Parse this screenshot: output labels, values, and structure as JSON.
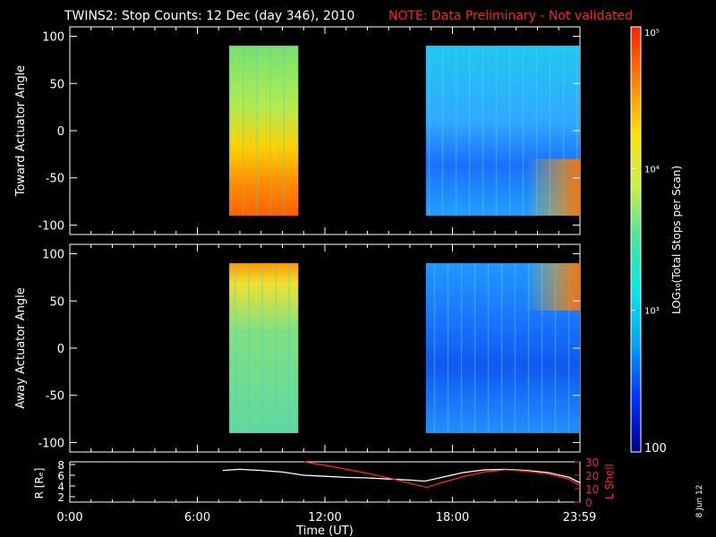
{
  "title": "TWINS2: Stop Counts: 12 Dec (day 346), 2010",
  "note": "NOTE: Data Preliminary - Not validated",
  "stamp": "8 Jun 12",
  "colorbar": {
    "label": "LOG₁₀(Total Stops per Scan)",
    "ticks": [
      {
        "value": 100000,
        "label": "10⁵"
      },
      {
        "value": 10000,
        "label": "10⁴"
      },
      {
        "value": 1000,
        "label": "10³"
      },
      {
        "value": 100,
        "label": "100"
      }
    ],
    "range": [
      100,
      100000
    ],
    "scale": "log",
    "colors": [
      "#00008c",
      "#0030ff",
      "#00a0ff",
      "#00e8e8",
      "#40e8a0",
      "#c8f040",
      "#ffe000",
      "#ff8000",
      "#ff2000"
    ]
  },
  "chart_data": [
    {
      "type": "heatmap",
      "ylabel": "Toward Actuator Angle",
      "ylim": [
        -110,
        110
      ],
      "yticks": [
        "100",
        "50",
        "0",
        "-50",
        "-100"
      ],
      "xlim_hours": [
        0,
        24
      ],
      "blocks": [
        {
          "start": "07:30",
          "end": "10:45",
          "angle_range": [
            -90,
            90
          ],
          "dominant_log_counts": 3.9
        },
        {
          "start": "16:45",
          "end": "24:00",
          "angle_range": [
            -90,
            90
          ],
          "dominant_log_counts": 3.0
        }
      ]
    },
    {
      "type": "heatmap",
      "ylabel": "Away Actuator Angle",
      "ylim": [
        -110,
        110
      ],
      "yticks": [
        "100",
        "50",
        "0",
        "-50",
        "-100"
      ],
      "xlim_hours": [
        0,
        24
      ],
      "blocks": [
        {
          "start": "07:30",
          "end": "10:45",
          "angle_range": [
            -90,
            90
          ],
          "dominant_log_counts": 3.8
        },
        {
          "start": "16:45",
          "end": "24:00",
          "angle_range": [
            -90,
            90
          ],
          "dominant_log_counts": 2.8
        }
      ]
    },
    {
      "type": "line",
      "xlabel": "Time (UT)",
      "xticks": [
        "0:00",
        "6:00",
        "12:00",
        "18:00",
        "23:59"
      ],
      "xtick_hours": [
        0,
        6,
        12,
        18,
        23.98
      ],
      "ylabel_left": "R [Rₑ]",
      "ylim_left": [
        1,
        8.5
      ],
      "yticks_left": [
        "8",
        "6",
        "4",
        "2"
      ],
      "ylabel_right": "L Shell",
      "ylim_right": [
        0,
        30
      ],
      "yticks_right": [
        "30",
        "20",
        "10",
        "0"
      ],
      "series": [
        {
          "name": "R [Rₑ]",
          "color": "#ffffff",
          "x": [
            7.2,
            8,
            9,
            10,
            11,
            12,
            13,
            14,
            15,
            16,
            16.7,
            17.5,
            18.5,
            19.5,
            20.5,
            21.5,
            22.5,
            23.5,
            24
          ],
          "y": [
            6.9,
            7.1,
            6.9,
            6.6,
            6.0,
            5.8,
            5.6,
            5.5,
            5.3,
            5.1,
            4.9,
            5.6,
            6.5,
            7.0,
            7.1,
            6.9,
            6.5,
            5.6,
            4.6
          ]
        },
        {
          "name": "L Shell",
          "color": "#ff2020",
          "x": [
            11.0,
            12,
            13,
            14,
            15,
            16,
            16.8,
            17.5,
            18.5,
            19.5,
            20.5,
            21.5,
            22.5,
            23.5,
            24
          ],
          "y": [
            30,
            27.5,
            24.5,
            21.5,
            18,
            14,
            11,
            14.5,
            19,
            22.5,
            24,
            23,
            21,
            17,
            12.5
          ]
        }
      ]
    }
  ]
}
